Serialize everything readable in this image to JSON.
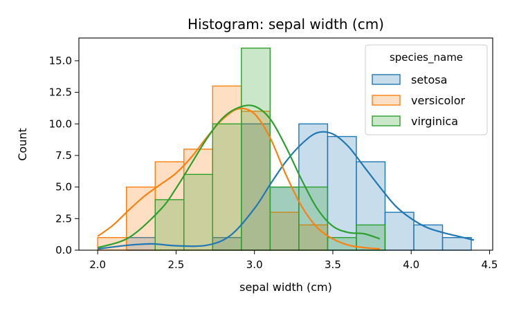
{
  "chart_data": {
    "type": "histogram",
    "title": "Histogram: sepal width (cm)",
    "xlabel": "sepal width (cm)",
    "ylabel": "Count",
    "xlim": [
      1.88,
      4.52
    ],
    "ylim": [
      0,
      16.8
    ],
    "xticks": [
      "2.0",
      "2.5",
      "3.0",
      "3.5",
      "4.0",
      "4.5"
    ],
    "yticks": [
      "0.0",
      "2.5",
      "5.0",
      "7.5",
      "10.0",
      "12.5",
      "15.0"
    ],
    "bin_edges": [
      2.0,
      2.1833,
      2.3667,
      2.55,
      2.7333,
      2.9167,
      3.1,
      3.2833,
      3.4667,
      3.65,
      3.8333,
      4.0167,
      4.2,
      4.3833
    ],
    "legend": {
      "title": "species_name",
      "position": "top-right",
      "items": [
        "setosa",
        "versicolor",
        "virginica"
      ]
    },
    "series": [
      {
        "name": "setosa",
        "color": "#1f77b4",
        "counts": [
          0,
          1,
          0,
          0,
          1,
          10,
          5,
          10,
          9,
          7,
          3,
          2,
          1
        ],
        "kde_x": [
          2.0,
          2.2,
          2.35,
          2.5,
          2.7,
          2.85,
          3.0,
          3.1,
          3.2,
          3.3,
          3.4,
          3.5,
          3.6,
          3.7,
          3.8,
          3.9,
          4.0,
          4.1,
          4.2,
          4.3,
          4.4
        ],
        "kde_y": [
          0.1,
          0.4,
          0.5,
          0.35,
          0.4,
          1.2,
          3.3,
          5.2,
          7.0,
          8.4,
          9.3,
          9.2,
          8.2,
          6.6,
          5.0,
          3.5,
          2.5,
          1.8,
          1.4,
          1.1,
          0.8
        ]
      },
      {
        "name": "versicolor",
        "color": "#ff7f0e",
        "counts": [
          1,
          5,
          7,
          8,
          13,
          11,
          3,
          2,
          0,
          0,
          0,
          0,
          0
        ],
        "kde_x": [
          2.0,
          2.1,
          2.2,
          2.3,
          2.4,
          2.5,
          2.6,
          2.7,
          2.8,
          2.9,
          3.0,
          3.1,
          3.2,
          3.3,
          3.4,
          3.5,
          3.6,
          3.7,
          3.8
        ],
        "kde_y": [
          1.1,
          2.0,
          3.2,
          4.3,
          5.2,
          6.1,
          7.4,
          9.0,
          10.4,
          11.2,
          10.8,
          8.9,
          6.0,
          3.5,
          1.8,
          0.9,
          0.4,
          0.2,
          0.1
        ]
      },
      {
        "name": "virginica",
        "color": "#2ca02c",
        "counts": [
          0,
          0,
          4,
          6,
          10,
          16,
          5,
          5,
          1,
          2,
          0,
          0,
          0
        ],
        "kde_x": [
          2.0,
          2.2,
          2.4,
          2.5,
          2.6,
          2.7,
          2.8,
          2.9,
          3.0,
          3.1,
          3.2,
          3.3,
          3.4,
          3.5,
          3.6,
          3.7,
          3.8
        ],
        "kde_y": [
          0.2,
          1.0,
          3.2,
          4.9,
          6.9,
          8.9,
          10.5,
          11.3,
          11.4,
          10.4,
          8.2,
          5.6,
          3.3,
          1.9,
          1.4,
          1.3,
          0.9
        ]
      }
    ]
  }
}
